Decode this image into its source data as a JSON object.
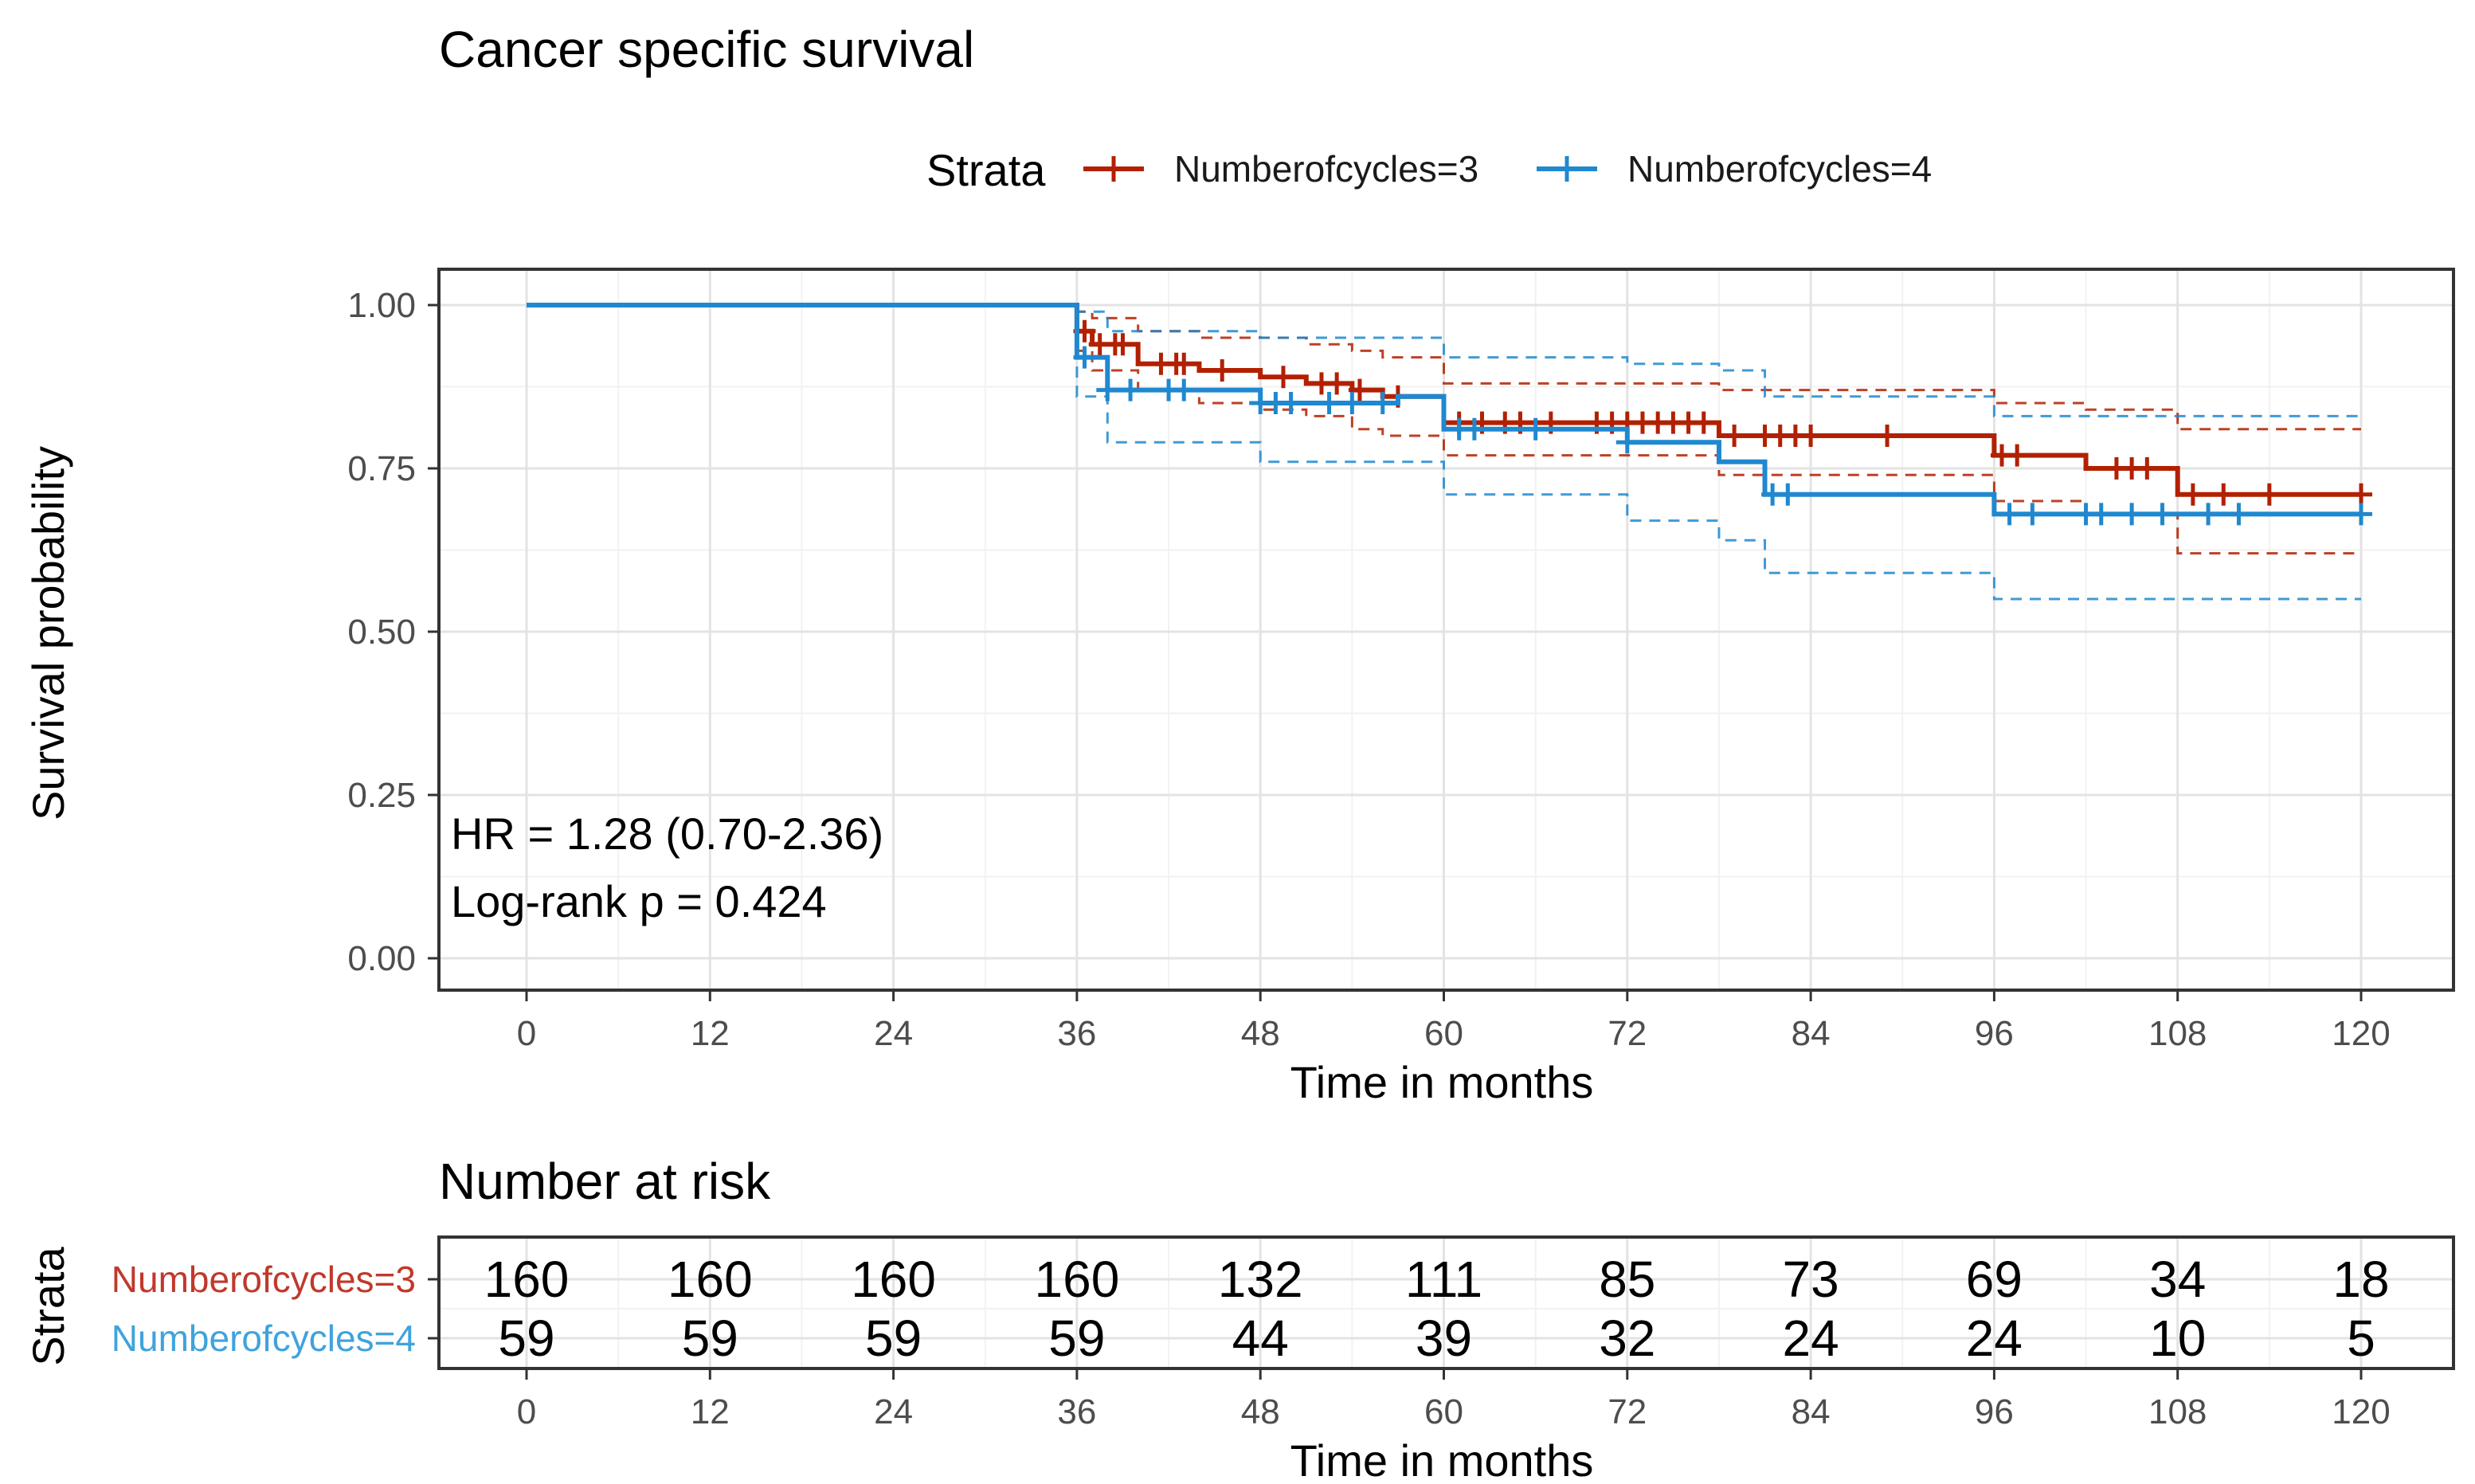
{
  "chart_data": {
    "type": "line",
    "subtype": "kaplan-meier",
    "title": "Cancer specific survival",
    "legend_title": "Strata",
    "legend_position": "top",
    "xlabel": "Time in months",
    "ylabel": "Survival probability",
    "xlim": [
      0,
      120
    ],
    "ylim": [
      0,
      1
    ],
    "x_ticks": [
      0,
      12,
      24,
      36,
      48,
      60,
      72,
      84,
      96,
      108,
      120
    ],
    "y_ticks": [
      0,
      0.25,
      0.5,
      0.75,
      1.0
    ],
    "y_tick_labels": [
      "0.00",
      "0.25",
      "0.50",
      "0.75",
      "1.00"
    ],
    "grid": true,
    "annotations": [
      "HR = 1.28 (0.70-2.36)",
      "Log-rank p = 0.424"
    ],
    "series": [
      {
        "name": "Numberofcycles=3",
        "color": "#b22000",
        "steps": [
          [
            0,
            1.0
          ],
          [
            36,
            0.96
          ],
          [
            37,
            0.94
          ],
          [
            40,
            0.91
          ],
          [
            44,
            0.9
          ],
          [
            48,
            0.89
          ],
          [
            51,
            0.88
          ],
          [
            54,
            0.87
          ],
          [
            56,
            0.86
          ],
          [
            60,
            0.82
          ],
          [
            78,
            0.8
          ],
          [
            96,
            0.77
          ],
          [
            102,
            0.75
          ],
          [
            108,
            0.71
          ],
          [
            120,
            0.71
          ]
        ],
        "ci_upper": [
          [
            0,
            1.0
          ],
          [
            36,
            0.99
          ],
          [
            37,
            0.98
          ],
          [
            40,
            0.96
          ],
          [
            44,
            0.95
          ],
          [
            48,
            0.95
          ],
          [
            51,
            0.94
          ],
          [
            54,
            0.93
          ],
          [
            56,
            0.92
          ],
          [
            60,
            0.88
          ],
          [
            78,
            0.87
          ],
          [
            96,
            0.85
          ],
          [
            102,
            0.84
          ],
          [
            108,
            0.81
          ],
          [
            120,
            0.81
          ]
        ],
        "ci_lower": [
          [
            0,
            1.0
          ],
          [
            36,
            0.93
          ],
          [
            37,
            0.9
          ],
          [
            40,
            0.87
          ],
          [
            44,
            0.85
          ],
          [
            48,
            0.84
          ],
          [
            51,
            0.83
          ],
          [
            54,
            0.81
          ],
          [
            56,
            0.8
          ],
          [
            60,
            0.77
          ],
          [
            78,
            0.74
          ],
          [
            96,
            0.7
          ],
          [
            102,
            0.68
          ],
          [
            108,
            0.62
          ],
          [
            120,
            0.62
          ]
        ],
        "censored": [
          36.5,
          37.5,
          38.5,
          39,
          41.5,
          42.5,
          43,
          45.5,
          49.5,
          52,
          53,
          54.5,
          57,
          61,
          62.5,
          64,
          65,
          67,
          70,
          71,
          72,
          73,
          74,
          75,
          76,
          77,
          79,
          81,
          82,
          83,
          84,
          89,
          96.5,
          97.5,
          104,
          105,
          106,
          109,
          111,
          114,
          120
        ]
      },
      {
        "name": "Numberofcycles=4",
        "color": "#1f88cf",
        "steps": [
          [
            0,
            1.0
          ],
          [
            36,
            0.92
          ],
          [
            38,
            0.87
          ],
          [
            48,
            0.85
          ],
          [
            57,
            0.86
          ],
          [
            60,
            0.81
          ],
          [
            72,
            0.79
          ],
          [
            78,
            0.76
          ],
          [
            81,
            0.71
          ],
          [
            96,
            0.68
          ],
          [
            120,
            0.68
          ]
        ],
        "ci_upper": [
          [
            0,
            1.0
          ],
          [
            36,
            0.99
          ],
          [
            38,
            0.96
          ],
          [
            48,
            0.95
          ],
          [
            57,
            0.95
          ],
          [
            60,
            0.92
          ],
          [
            72,
            0.91
          ],
          [
            78,
            0.9
          ],
          [
            81,
            0.86
          ],
          [
            96,
            0.83
          ],
          [
            120,
            0.83
          ]
        ],
        "ci_lower": [
          [
            0,
            1.0
          ],
          [
            36,
            0.86
          ],
          [
            38,
            0.79
          ],
          [
            48,
            0.76
          ],
          [
            57,
            0.76
          ],
          [
            60,
            0.71
          ],
          [
            72,
            0.67
          ],
          [
            78,
            0.64
          ],
          [
            81,
            0.59
          ],
          [
            96,
            0.55
          ],
          [
            120,
            0.55
          ]
        ],
        "censored": [
          36.5,
          38,
          39.5,
          42,
          43,
          48,
          49,
          50,
          52.5,
          54,
          56,
          61,
          62,
          66,
          72,
          81.5,
          82.5,
          97,
          98.5,
          102,
          103,
          105,
          107,
          110,
          112,
          120
        ]
      }
    ],
    "risk_table": {
      "title": "Number at risk",
      "row_axis_label": "Strata",
      "xlabel": "Time in months",
      "rows": [
        {
          "name": "Numberofcycles=3",
          "color": "#c0392b",
          "values": [
            160,
            160,
            160,
            160,
            132,
            111,
            85,
            73,
            69,
            34,
            18
          ]
        },
        {
          "name": "Numberofcycles=4",
          "color": "#3fa3dc",
          "values": [
            59,
            59,
            59,
            59,
            44,
            39,
            32,
            24,
            24,
            10,
            5
          ]
        }
      ]
    }
  }
}
